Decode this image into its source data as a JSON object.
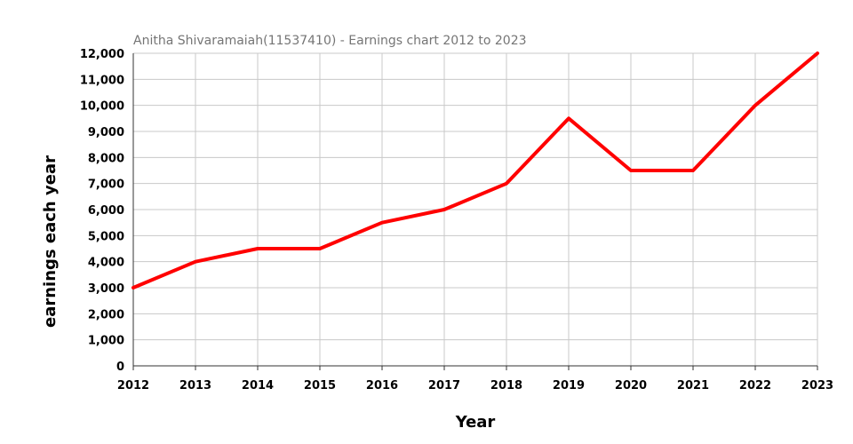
{
  "chart_data": {
    "type": "line",
    "title": "Anitha Shivaramaiah(11537410) - Earnings chart 2012 to 2023",
    "xlabel": "Year",
    "ylabel": "earnings each year",
    "categories": [
      "2012",
      "2013",
      "2014",
      "2015",
      "2016",
      "2017",
      "2018",
      "2019",
      "2020",
      "2021",
      "2022",
      "2023"
    ],
    "series": [
      {
        "values": [
          3000,
          4000,
          4500,
          4500,
          5500,
          6000,
          7000,
          9500,
          7500,
          7500,
          10000,
          12000
        ],
        "color": "#ff0000"
      }
    ],
    "ylim": [
      0,
      12000
    ],
    "yticks": [
      0,
      1000,
      2000,
      3000,
      4000,
      5000,
      6000,
      7000,
      8000,
      9000,
      10000,
      11000,
      12000
    ],
    "ytick_labels": [
      "0",
      "1,000",
      "2,000",
      "3,000",
      "4,000",
      "5,000",
      "6,000",
      "7,000",
      "8,000",
      "9,000",
      "10,000",
      "11,000",
      "12,000"
    ],
    "grid": true,
    "legend": "none"
  }
}
